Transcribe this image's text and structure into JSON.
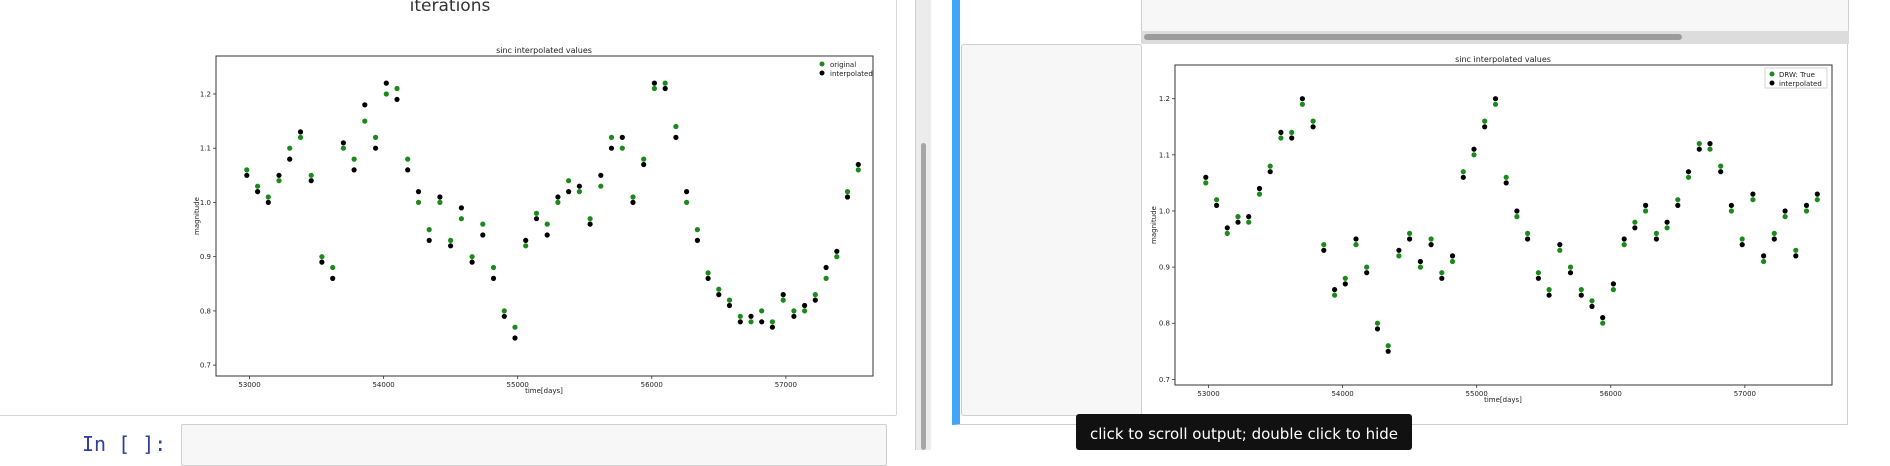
{
  "left": {
    "section_title": "iterations",
    "prompt": "In [ ]:"
  },
  "tooltip": "click to scroll output; double click to hide",
  "charts": {
    "left": {
      "title": "sinc interpolated values",
      "xlabel": "time[days]",
      "ylabel": "magnitude",
      "xticks": [
        "53000",
        "54000",
        "55000",
        "56000",
        "57000"
      ],
      "yticks": [
        "1.2",
        "1.1",
        "1.0",
        "0.9",
        "0.8",
        "0.7"
      ],
      "legend": [
        "original",
        "interpolated"
      ]
    },
    "right": {
      "title": "sinc interpolated values",
      "xlabel": "time[days]",
      "ylabel": "magnitude",
      "xticks": [
        "53000",
        "54000",
        "55000",
        "56000",
        "57000"
      ],
      "yticks": [
        "1.2",
        "1.1",
        "1.0",
        "0.9",
        "0.8",
        "0.7"
      ],
      "legend": [
        "DRW: True",
        "interpolated"
      ]
    }
  },
  "colors": {
    "original_series": "#1a8a1a",
    "interpolated_series": "#000000",
    "selected_cell_border": "#42a5f5",
    "prompt_color": "#303f9f"
  },
  "chart_data": [
    {
      "type": "scatter",
      "title": "sinc interpolated values",
      "xlabel": "time[days]",
      "ylabel": "magnitude",
      "xlim": [
        52750,
        57650
      ],
      "ylim": [
        0.68,
        1.27
      ],
      "legend_position": "top-right",
      "series": [
        {
          "name": "original",
          "color": "#1a8a1a",
          "x": [
            52980,
            53060,
            53140,
            53220,
            53300,
            53380,
            53460,
            53540,
            53620,
            53700,
            53780,
            53860,
            53940,
            54020,
            54100,
            54180,
            54260,
            54340,
            54420,
            54500,
            54580,
            54660,
            54740,
            54820,
            54900,
            54980,
            55060,
            55140,
            55220,
            55300,
            55380,
            55460,
            55540,
            55620,
            55700,
            55780,
            55860,
            55940,
            56020,
            56100,
            56180,
            56260,
            56340,
            56420,
            56500,
            56580,
            56660,
            56740,
            56820,
            56900,
            56980,
            57060,
            57140,
            57220,
            57300,
            57380,
            57460,
            57540
          ],
          "y": [
            1.06,
            1.03,
            1.01,
            1.04,
            1.1,
            1.12,
            1.05,
            0.9,
            0.88,
            1.1,
            1.08,
            1.15,
            1.12,
            1.2,
            1.21,
            1.08,
            1.0,
            0.95,
            1.0,
            0.93,
            0.97,
            0.9,
            0.96,
            0.88,
            0.8,
            0.77,
            0.92,
            0.98,
            0.96,
            1.0,
            1.04,
            1.02,
            0.97,
            1.03,
            1.12,
            1.1,
            1.01,
            1.08,
            1.21,
            1.22,
            1.14,
            1.0,
            0.95,
            0.87,
            0.84,
            0.82,
            0.79,
            0.78,
            0.8,
            0.78,
            0.82,
            0.8,
            0.8,
            0.83,
            0.86,
            0.9,
            1.02,
            1.06
          ]
        },
        {
          "name": "interpolated",
          "color": "#000000",
          "x": [
            52980,
            53060,
            53140,
            53220,
            53300,
            53380,
            53460,
            53540,
            53620,
            53700,
            53780,
            53860,
            53940,
            54020,
            54100,
            54180,
            54260,
            54340,
            54420,
            54500,
            54580,
            54660,
            54740,
            54820,
            54900,
            54980,
            55060,
            55140,
            55220,
            55300,
            55380,
            55460,
            55540,
            55620,
            55700,
            55780,
            55860,
            55940,
            56020,
            56100,
            56180,
            56260,
            56340,
            56420,
            56500,
            56580,
            56660,
            56740,
            56820,
            56900,
            56980,
            57060,
            57140,
            57220,
            57300,
            57380,
            57460,
            57540
          ],
          "y": [
            1.05,
            1.02,
            1.0,
            1.05,
            1.08,
            1.13,
            1.04,
            0.89,
            0.86,
            1.11,
            1.06,
            1.18,
            1.1,
            1.22,
            1.19,
            1.06,
            1.02,
            0.93,
            1.01,
            0.92,
            0.99,
            0.89,
            0.94,
            0.86,
            0.79,
            0.75,
            0.93,
            0.97,
            0.94,
            1.01,
            1.02,
            1.03,
            0.96,
            1.05,
            1.1,
            1.12,
            1.0,
            1.07,
            1.22,
            1.21,
            1.12,
            1.02,
            0.93,
            0.86,
            0.83,
            0.81,
            0.78,
            0.79,
            0.78,
            0.77,
            0.83,
            0.79,
            0.81,
            0.82,
            0.88,
            0.91,
            1.01,
            1.07
          ]
        }
      ]
    },
    {
      "type": "scatter",
      "title": "sinc interpolated values",
      "xlabel": "time[days]",
      "ylabel": "magnitude",
      "xlim": [
        52750,
        57650
      ],
      "ylim": [
        0.69,
        1.26
      ],
      "legend_position": "top-right",
      "series": [
        {
          "name": "DRW: True",
          "color": "#1a8a1a",
          "x": [
            52980,
            53060,
            53140,
            53220,
            53300,
            53380,
            53460,
            53540,
            53620,
            53700,
            53780,
            53860,
            53940,
            54020,
            54100,
            54180,
            54260,
            54340,
            54420,
            54500,
            54580,
            54660,
            54740,
            54820,
            54900,
            54980,
            55060,
            55140,
            55220,
            55300,
            55380,
            55460,
            55540,
            55620,
            55700,
            55780,
            55860,
            55940,
            56020,
            56100,
            56180,
            56260,
            56340,
            56420,
            56500,
            56580,
            56660,
            56740,
            56820,
            56900,
            56980,
            57060,
            57140,
            57220,
            57300,
            57380,
            57460,
            57540
          ],
          "y": [
            1.05,
            1.02,
            0.96,
            0.99,
            0.98,
            1.03,
            1.08,
            1.13,
            1.14,
            1.19,
            1.16,
            0.94,
            0.85,
            0.88,
            0.94,
            0.9,
            0.8,
            0.76,
            0.92,
            0.96,
            0.9,
            0.95,
            0.89,
            0.91,
            1.07,
            1.1,
            1.16,
            1.19,
            1.06,
            0.99,
            0.96,
            0.89,
            0.86,
            0.93,
            0.9,
            0.86,
            0.84,
            0.8,
            0.86,
            0.94,
            0.98,
            1.0,
            0.96,
            0.97,
            1.02,
            1.06,
            1.12,
            1.11,
            1.08,
            1.0,
            0.95,
            1.02,
            0.91,
            0.96,
            0.99,
            0.93,
            1.0,
            1.02
          ]
        },
        {
          "name": "interpolated",
          "color": "#000000",
          "x": [
            52980,
            53060,
            53140,
            53220,
            53300,
            53380,
            53460,
            53540,
            53620,
            53700,
            53780,
            53860,
            53940,
            54020,
            54100,
            54180,
            54260,
            54340,
            54420,
            54500,
            54580,
            54660,
            54740,
            54820,
            54900,
            54980,
            55060,
            55140,
            55220,
            55300,
            55380,
            55460,
            55540,
            55620,
            55700,
            55780,
            55860,
            55940,
            56020,
            56100,
            56180,
            56260,
            56340,
            56420,
            56500,
            56580,
            56660,
            56740,
            56820,
            56900,
            56980,
            57060,
            57140,
            57220,
            57300,
            57380,
            57460,
            57540
          ],
          "y": [
            1.06,
            1.01,
            0.97,
            0.98,
            0.99,
            1.04,
            1.07,
            1.14,
            1.13,
            1.2,
            1.15,
            0.93,
            0.86,
            0.87,
            0.95,
            0.89,
            0.79,
            0.75,
            0.93,
            0.95,
            0.91,
            0.94,
            0.88,
            0.92,
            1.06,
            1.11,
            1.15,
            1.2,
            1.05,
            1.0,
            0.95,
            0.88,
            0.85,
            0.94,
            0.89,
            0.85,
            0.83,
            0.81,
            0.87,
            0.95,
            0.97,
            1.01,
            0.95,
            0.98,
            1.01,
            1.07,
            1.11,
            1.12,
            1.07,
            1.01,
            0.94,
            1.03,
            0.92,
            0.95,
            1.0,
            0.92,
            1.01,
            1.03
          ]
        }
      ]
    }
  ]
}
